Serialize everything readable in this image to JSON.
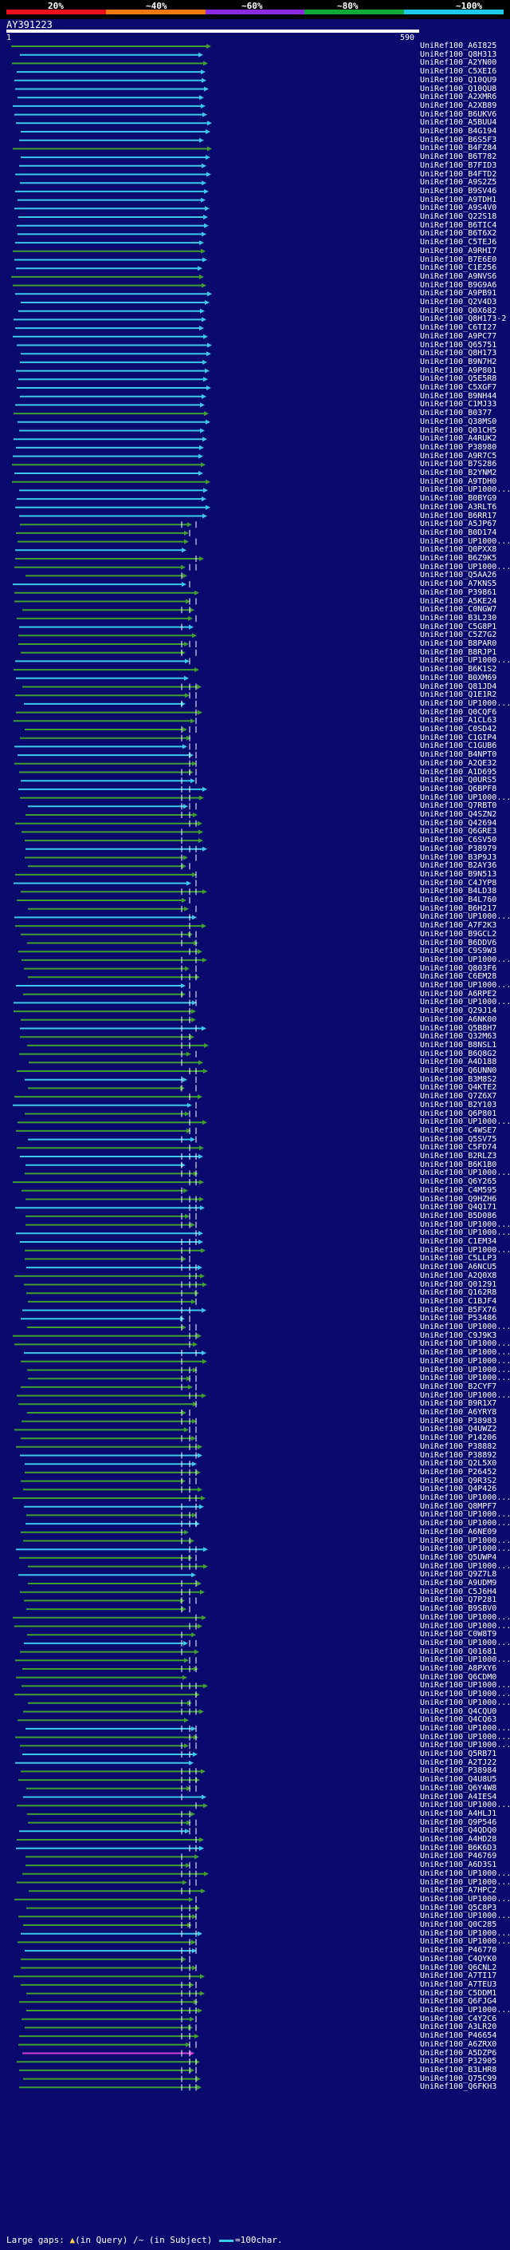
{
  "header": {
    "scale_labels": [
      "20%",
      "~40%",
      "~60%",
      "~80%",
      "~100%"
    ],
    "scale_colors": [
      "#e8101a",
      "#f07a10",
      "#8a2be2",
      "#0ea93a",
      "#1ec9e8"
    ],
    "query_name": "AY391223",
    "range_start": "1",
    "range_end": "590"
  },
  "colors": {
    "cyan": "#3bc8ea",
    "green": "#3f9e30",
    "magenta": "#d040d0",
    "background": "#0a0a6e"
  },
  "hits": [
    "UniRef100_A6I825",
    "UniRef100_Q8H313",
    "UniRef100_A2YN00",
    "UniRef100_C5XEI6",
    "UniRef100_Q10QU9",
    "UniRef100_Q10QU8",
    "UniRef100_A2XMR6",
    "UniRef100_A2XB89",
    "UniRef100_B6UKV6",
    "UniRef100_A5BUU4",
    "UniRef100_B4G194",
    "UniRef100_B6S5F3",
    "UniRef100_B4FZ84",
    "UniRef100_B6T782",
    "UniRef100_B7FID3",
    "UniRef100_B4FTD2",
    "UniRef100_A9S2Z5",
    "UniRef100_B9SV46",
    "UniRef100_A9TDH1",
    "UniRef100_A9S4V0",
    "UniRef100_Q22S18",
    "UniRef100_B6TIC4",
    "UniRef100_B6T6X2",
    "UniRef100_C5TEJ6",
    "UniRef100_A9RHI7",
    "UniRef100_B7E6E0",
    "UniRef100_C1E256",
    "UniRef100_A9NVS6",
    "UniRef100_B9G9A6",
    "UniRef100_A9PB91",
    "UniRef100_Q2V4D3",
    "UniRef100_Q0X682",
    "UniRef100_Q8H173-2",
    "UniRef100_C6TI27",
    "UniRef100_A9PC77",
    "UniRef100_Q65751",
    "UniRef100_Q8H173",
    "UniRef100_B9N7H2",
    "UniRef100_A9P801",
    "UniRef100_Q5E5R8",
    "UniRef100_C5XGF7",
    "UniRef100_B9NH44",
    "UniRef100_C1MJ33",
    "UniRef100_B0377",
    "UniRef100_Q38MS0",
    "UniRef100_Q01CH5",
    "UniRef100_A4RUK2",
    "UniRef100_P38980",
    "UniRef100_A9R7C5",
    "UniRef100_B7S286",
    "UniRef100_B2YNM2",
    "UniRef100_A9TDH0",
    "UniRef100_UP1000...",
    "UniRef100_B0BYG9",
    "UniRef100_A3RLT6",
    "UniRef100_B6RR17",
    "UniRef100_A5JP67",
    "UniRef100_B0D174",
    "UniRef100_UP1000...",
    "UniRef100_Q0PXX8",
    "UniRef100_B6Z9K5",
    "UniRef100_UP1000...",
    "UniRef100_Q5AA26",
    "UniRef100_A7KNS5",
    "UniRef100_P39861",
    "UniRef100_A5KE24",
    "UniRef100_C0NGW7",
    "UniRef100_B3L230",
    "UniRef100_C5G8P1",
    "UniRef100_C5Z7G2",
    "UniRef100_B8PAR0",
    "UniRef100_B8RJP1",
    "UniRef100_UP1000...",
    "UniRef100_B6K1S2",
    "UniRef100_B0XM69",
    "UniRef100_Q81JD4",
    "UniRef100_Q1E1R2",
    "UniRef100_UP1000...",
    "UniRef100_Q0CQF6",
    "UniRef100_A1CL63",
    "UniRef100_C0SD42",
    "UniRef100_C1GIP4",
    "UniRef100_C1GUB6",
    "UniRef100_B4NPT0",
    "UniRef100_A2QE32",
    "UniRef100_A1D695",
    "UniRef100_Q0URS5",
    "UniRef100_Q6BPF8",
    "UniRef100_UP1000...",
    "UniRef100_Q7RBT0",
    "UniRef100_Q4SZN2",
    "UniRef100_Q42694",
    "UniRef100_Q6GRE3",
    "UniRef100_C6SV50",
    "UniRef100_P38979",
    "UniRef100_B3P9J3",
    "UniRef100_B2AY36",
    "UniRef100_B9N513",
    "UniRef100_C4JYP8",
    "UniRef100_B4LD38",
    "UniRef100_B4L760",
    "UniRef100_B6H217",
    "UniRef100_UP1000...",
    "UniRef100_A7F2K3",
    "UniRef100_B9GCL2",
    "UniRef100_B6DDV6",
    "UniRef100_C9S9W3",
    "UniRef100_UP1000...",
    "UniRef100_Q803F6",
    "UniRef100_C6EM28",
    "UniRef100_UP1000...",
    "UniRef100_A6RPE2",
    "UniRef100_UP1000...",
    "UniRef100_Q29J14",
    "UniRef100_A6NK00",
    "UniRef100_Q5B8H7",
    "UniRef100_Q32M63",
    "UniRef100_B8NSL1",
    "UniRef100_B6Q8G2",
    "UniRef100_A4D188",
    "UniRef100_Q6UNN0",
    "UniRef100_B3M8S2",
    "UniRef100_Q4KTE2",
    "UniRef100_Q7Z6X7",
    "UniRef100_B2Y103",
    "UniRef100_Q6P801",
    "UniRef100_UP1000...",
    "UniRef100_C4WSE7",
    "UniRef100_Q5SV75",
    "UniRef100_C5FD74",
    "UniRef100_B2RLZ3",
    "UniRef100_B6K1B0",
    "UniRef100_UP1000...",
    "UniRef100_Q6Y265",
    "UniRef100_C4M595",
    "UniRef100_Q9HZH6",
    "UniRef100_Q4Q171",
    "UniRef100_B5D086",
    "UniRef100_UP1000...",
    "UniRef100_UP1000...",
    "UniRef100_C1EM34",
    "UniRef100_UP1000...",
    "UniRef100_C5LLP3",
    "UniRef100_A6NCU5",
    "UniRef100_A2Q0X8",
    "UniRef100_Q01291",
    "UniRef100_Q162R8",
    "UniRef100_C1BJF4",
    "UniRef100_B5FX76",
    "UniRef100_P53486",
    "UniRef100_UP1000...",
    "UniRef100_C9J9K3",
    "UniRef100_UP1000...",
    "UniRef100_UP1000...",
    "UniRef100_UP1000...",
    "UniRef100_UP1000...",
    "UniRef100_UP1000...",
    "UniRef100_B2CYF7",
    "UniRef100_UP1000...",
    "UniRef100_B9R1X7",
    "UniRef100_A6YRY8",
    "UniRef100_P38983",
    "UniRef100_Q4UWZ2",
    "UniRef100_P14206",
    "UniRef100_P38882",
    "UniRef100_P38892",
    "UniRef100_Q2L5X0",
    "UniRef100_P26452",
    "UniRef100_Q9R3S2",
    "UniRef100_Q4P426",
    "UniRef100_UP1000...",
    "UniRef100_Q8MPF7",
    "UniRef100_UP1000...",
    "UniRef100_UP1000...",
    "UniRef100_A6NE09",
    "UniRef100_UP1000...",
    "UniRef100_UP1000...",
    "UniRef100_Q5UWP4",
    "UniRef100_UP1000...",
    "UniRef100_Q9Z7L8",
    "UniRef100_A9UDM9",
    "UniRef100_C5J6H4",
    "UniRef100_Q7P281",
    "UniRef100_B9SBV0",
    "UniRef100_UP1000...",
    "UniRef100_UP1000...",
    "UniRef100_C0W8T9",
    "UniRef100_UP1000...",
    "UniRef100_Q01681",
    "UniRef100_UP1000...",
    "UniRef100_A8PXY6",
    "UniRef100_Q6CDM0",
    "UniRef100_UP1000...",
    "UniRef100_UP1000...",
    "UniRef100_UP1000...",
    "UniRef100_Q4CQU0",
    "UniRef100_Q4CQ63",
    "UniRef100_UP1000...",
    "UniRef100_UP1000...",
    "UniRef100_UP1000...",
    "UniRef100_Q5RB71",
    "UniRef100_A2TJ22",
    "UniRef100_P38984",
    "UniRef100_Q4U8U5",
    "UniRef100_Q6Y4W8",
    "UniRef100_A4IES4",
    "UniRef100_UP1000...",
    "UniRef100_A4HLJ1",
    "UniRef100_Q9P546",
    "UniRef100_Q4QDQ0",
    "UniRef100_A4HD28",
    "UniRef100_B6K6D3",
    "UniRef100_P46769",
    "UniRef100_A6D3S1",
    "UniRef100_UP1000...",
    "UniRef100_UP1000...",
    "UniRef100_A7HPC2",
    "UniRef100_UP1000...",
    "UniRef100_Q5C8P3",
    "UniRef100_UP1000...",
    "UniRef100_Q0C285",
    "UniRef100_UP1000...",
    "UniRef100_UP1000...",
    "UniRef100_P46770",
    "UniRef100_C4QYK0",
    "UniRef100_Q6CNL2",
    "UniRef100_A7TI17",
    "UniRef100_A7TEU3",
    "UniRef100_C5DDM1",
    "UniRef100_Q6FJG4",
    "UniRef100_UP1000...",
    "UniRef100_C4Y2C6",
    "UniRef100_A3LR20",
    "UniRef100_P46654",
    "UniRef100_A6ZRX0",
    "UniRef100_A5DZP6",
    "UniRef100_P32905",
    "UniRef100_B3LHR8",
    "UniRef100_Q75C99",
    "UniRef100_Q6FKH3"
  ],
  "legend": {
    "prefix": "Large gaps:",
    "query_text": "(in Query)",
    "subject_text": "(in Subject)",
    "bar_text": "=100char."
  }
}
